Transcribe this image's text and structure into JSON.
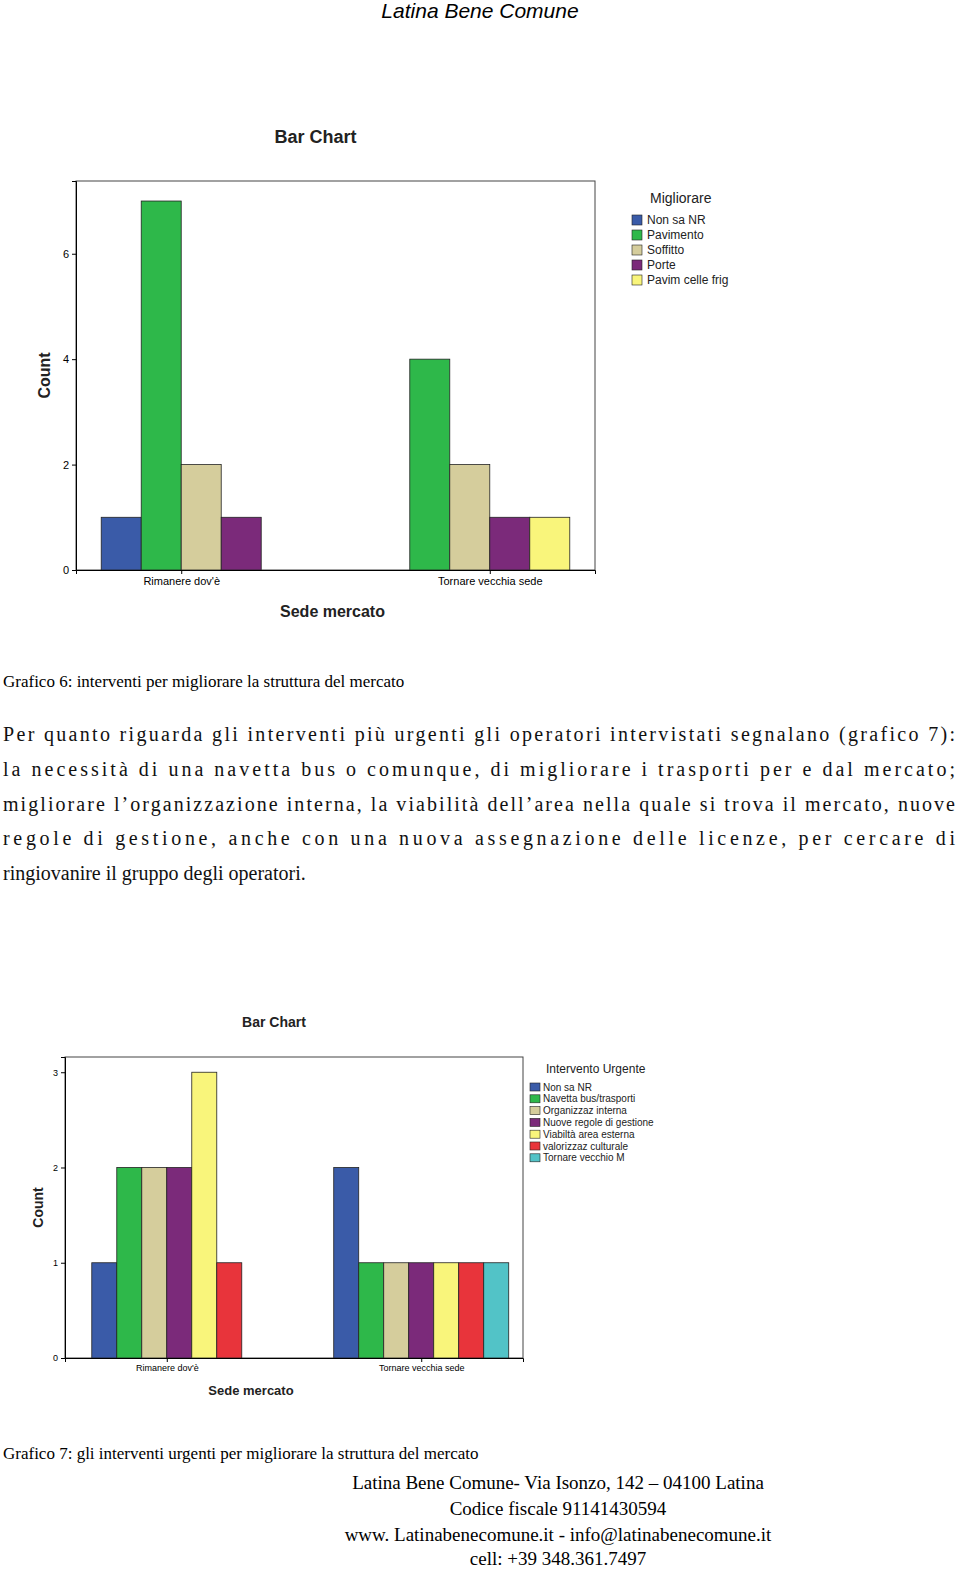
{
  "header": "Latina Bene Comune",
  "chart_data": [
    {
      "type": "bar",
      "title": "Bar Chart",
      "x_label": "Sede mercato",
      "y_label": "Count",
      "legend_title": "Migliorare",
      "legend": "right",
      "grid": false,
      "categories": [
        "Rimanere dov'è",
        "Tornare vecchia sede"
      ],
      "series": [
        {
          "name": "Non sa NR",
          "color": "#3a5ba8",
          "values": [
            1,
            null
          ]
        },
        {
          "name": "Pavimento",
          "color": "#2eb84a",
          "values": [
            7,
            4
          ]
        },
        {
          "name": "Soffitto",
          "color": "#d5cd9c",
          "values": [
            2,
            2
          ]
        },
        {
          "name": "Porte",
          "color": "#7b2a7a",
          "values": [
            1,
            1
          ]
        },
        {
          "name": "Pavim celle frig",
          "color": "#f9f57b",
          "values": [
            null,
            1
          ]
        }
      ],
      "ylim": [
        0,
        7.38
      ],
      "yticks": [
        0,
        2,
        4,
        6
      ]
    },
    {
      "type": "bar",
      "title": "Bar Chart",
      "x_label": "Sede mercato",
      "y_label": "Count",
      "legend_title": "Intervento Urgente",
      "legend": "right",
      "grid": false,
      "categories": [
        "Rimanere dov'è",
        "Tornare vecchia sede"
      ],
      "series": [
        {
          "name": "Non sa NR",
          "color": "#3a5ba8",
          "values": [
            1,
            2
          ]
        },
        {
          "name": "Navetta bus/trasporti",
          "color": "#2eb84a",
          "values": [
            2,
            1
          ]
        },
        {
          "name": "Organizzaz interna",
          "color": "#d5cd9c",
          "values": [
            2,
            1
          ]
        },
        {
          "name": "Nuove regole di gestione",
          "color": "#7b2a7a",
          "values": [
            2,
            1
          ]
        },
        {
          "name": "Viabiltà area esterna",
          "color": "#f9f57b",
          "values": [
            3,
            1
          ]
        },
        {
          "name": "valorizzaz culturale",
          "color": "#e8343b",
          "values": [
            1,
            1
          ]
        },
        {
          "name": "Tornare vecchio M",
          "color": "#52c3c7",
          "values": [
            null,
            1
          ]
        }
      ],
      "ylim": [
        0,
        3.16
      ],
      "yticks": [
        0,
        1,
        2,
        3
      ]
    }
  ],
  "captions": [
    "Grafico 6: interventi per migliorare la struttura del mercato",
    "Grafico 7: gli interventi urgenti per migliorare la struttura del mercato"
  ],
  "paragraph": [
    "Per quanto riguarda gli interventi più urgenti gli operatori intervistati segnalano (grafico 7):",
    "la necessità di una navetta bus o comunque, di migliorare i trasporti per e dal mercato;",
    "migliorare l’organizzazione interna, la viabilità dell’area nella quale si trova il mercato, nuove",
    "regole di gestione, anche con una nuova assegnazione delle licenze, per cercare di",
    "ringiovanire il gruppo degli operatori."
  ],
  "footer": [
    "Latina Bene Comune- Via Isonzo, 142 – 04100 Latina",
    "Codice fiscale  91141430594",
    "www. Latinabenecomune.it - info@latinabenecomune.it",
    "cell: +39 348.361.7497"
  ]
}
